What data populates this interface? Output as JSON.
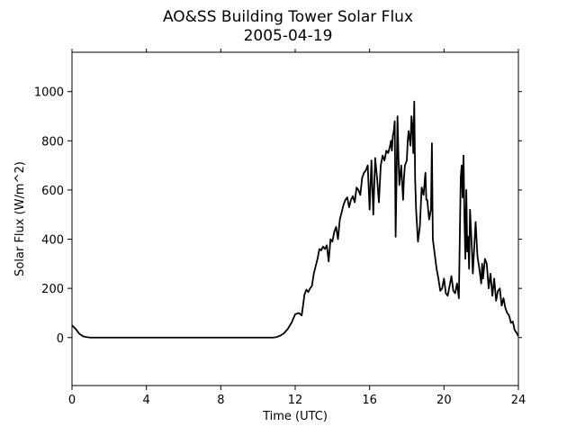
{
  "chart_data": {
    "type": "line",
    "title": "AO&SS Building Tower Solar Flux",
    "subtitle": "2005-04-19",
    "xlabel": "Time (UTC)",
    "ylabel": "Solar Flux (W/m^2)",
    "xlim": [
      0,
      24
    ],
    "ylim": [
      -195,
      1160
    ],
    "xticks": [
      0,
      4,
      8,
      12,
      16,
      20,
      24
    ],
    "xtick_labels": [
      "0",
      "4",
      "8",
      "12",
      "16",
      "20",
      "24"
    ],
    "yticks": [
      0,
      200,
      400,
      600,
      800,
      1000
    ],
    "ytick_labels": [
      "0",
      "200",
      "400",
      "600",
      "800",
      "1000"
    ],
    "grid": false,
    "series": [
      {
        "color": "#000000",
        "x": [
          0,
          0.2,
          0.4,
          0.6,
          0.8,
          1.0,
          1.5,
          2,
          4,
          6,
          8,
          10,
          10.5,
          10.8,
          11.0,
          11.2,
          11.4,
          11.6,
          11.8,
          12.0,
          12.2,
          12.35,
          12.5,
          12.6,
          12.7,
          12.8,
          12.9,
          13.0,
          13.1,
          13.2,
          13.3,
          13.4,
          13.5,
          13.6,
          13.7,
          13.8,
          13.9,
          14.0,
          14.1,
          14.2,
          14.3,
          14.4,
          14.5,
          14.6,
          14.7,
          14.8,
          14.9,
          15.0,
          15.1,
          15.2,
          15.3,
          15.4,
          15.5,
          15.6,
          15.7,
          15.8,
          15.9,
          16.0,
          16.1,
          16.2,
          16.3,
          16.4,
          16.5,
          16.6,
          16.7,
          16.8,
          16.9,
          17.0,
          17.1,
          17.15,
          17.2,
          17.25,
          17.3,
          17.35,
          17.4,
          17.5,
          17.55,
          17.6,
          17.7,
          17.8,
          17.85,
          17.9,
          18.0,
          18.05,
          18.1,
          18.2,
          18.25,
          18.3,
          18.35,
          18.4,
          18.45,
          18.5,
          18.6,
          18.7,
          18.8,
          18.9,
          19.0,
          19.05,
          19.1,
          19.2,
          19.3,
          19.35,
          19.4,
          19.5,
          19.6,
          19.7,
          19.8,
          19.9,
          20.0,
          20.1,
          20.2,
          20.3,
          20.4,
          20.5,
          20.6,
          20.7,
          20.8,
          20.85,
          20.9,
          20.95,
          21.0,
          21.05,
          21.1,
          21.15,
          21.2,
          21.25,
          21.3,
          21.35,
          21.4,
          21.5,
          21.55,
          21.6,
          21.7,
          21.8,
          21.9,
          22.0,
          22.05,
          22.1,
          22.2,
          22.3,
          22.4,
          22.5,
          22.6,
          22.7,
          22.8,
          22.9,
          23.0,
          23.1,
          23.2,
          23.3,
          23.4,
          23.5,
          23.6,
          23.7,
          23.8,
          23.9,
          24.0
        ],
        "y": [
          50,
          35,
          15,
          5,
          2,
          0,
          0,
          0,
          0,
          0,
          0,
          0,
          0,
          0,
          2,
          8,
          18,
          35,
          60,
          95,
          100,
          90,
          175,
          195,
          185,
          200,
          210,
          260,
          290,
          320,
          360,
          355,
          370,
          360,
          375,
          310,
          400,
          390,
          430,
          450,
          400,
          480,
          510,
          540,
          560,
          570,
          530,
          560,
          575,
          550,
          610,
          600,
          580,
          650,
          670,
          680,
          700,
          520,
          720,
          500,
          730,
          650,
          550,
          700,
          740,
          720,
          760,
          750,
          780,
          800,
          760,
          820,
          840,
          880,
          410,
          900,
          740,
          620,
          700,
          560,
          650,
          700,
          720,
          800,
          840,
          780,
          900,
          860,
          750,
          960,
          640,
          520,
          390,
          450,
          610,
          580,
          670,
          560,
          560,
          480,
          520,
          790,
          400,
          340,
          280,
          240,
          190,
          200,
          240,
          180,
          170,
          210,
          250,
          190,
          180,
          220,
          160,
          410,
          650,
          700,
          570,
          740,
          480,
          320,
          600,
          350,
          410,
          280,
          520,
          360,
          260,
          330,
          470,
          330,
          280,
          220,
          300,
          240,
          320,
          300,
          200,
          260,
          170,
          240,
          150,
          190,
          200,
          130,
          160,
          120,
          100,
          90,
          60,
          65,
          30,
          20,
          5
        ]
      }
    ]
  }
}
